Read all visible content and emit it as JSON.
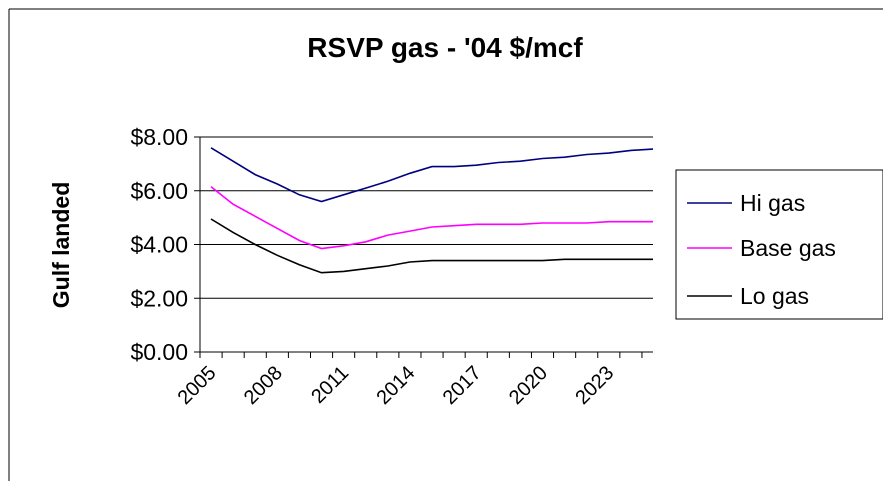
{
  "chart_data": {
    "type": "line",
    "title": "RSVP gas - '04 $/mcf",
    "xlabel": "",
    "ylabel": "Gulf landed",
    "x": [
      2005,
      2006,
      2007,
      2008,
      2009,
      2010,
      2011,
      2012,
      2013,
      2014,
      2015,
      2016,
      2017,
      2018,
      2019,
      2020,
      2021,
      2022,
      2023,
      2024,
      2025
    ],
    "x_tick_labels": [
      "2005",
      "2008",
      "2011",
      "2014",
      "2017",
      "2020",
      "2023"
    ],
    "y_tick_labels": [
      "$0.00",
      "$2.00",
      "$4.00",
      "$6.00",
      "$8.00"
    ],
    "ylim": [
      0,
      8
    ],
    "grid": true,
    "legend": "right",
    "series": [
      {
        "name": "Hi gas",
        "color": "#000080",
        "values": [
          7.6,
          7.1,
          6.6,
          6.25,
          5.85,
          5.6,
          5.85,
          6.1,
          6.35,
          6.65,
          6.9,
          6.9,
          6.95,
          7.05,
          7.1,
          7.2,
          7.25,
          7.35,
          7.4,
          7.5,
          7.55
        ]
      },
      {
        "name": "Base gas",
        "color": "#ff00ff",
        "values": [
          6.15,
          5.5,
          5.05,
          4.6,
          4.15,
          3.85,
          3.95,
          4.1,
          4.35,
          4.5,
          4.65,
          4.7,
          4.75,
          4.75,
          4.75,
          4.8,
          4.8,
          4.8,
          4.85,
          4.85,
          4.85
        ]
      },
      {
        "name": "Lo gas",
        "color": "#000000",
        "values": [
          4.95,
          4.45,
          4.0,
          3.6,
          3.25,
          2.95,
          3.0,
          3.1,
          3.2,
          3.35,
          3.4,
          3.4,
          3.4,
          3.4,
          3.4,
          3.4,
          3.45,
          3.45,
          3.45,
          3.45,
          3.45
        ]
      }
    ]
  }
}
